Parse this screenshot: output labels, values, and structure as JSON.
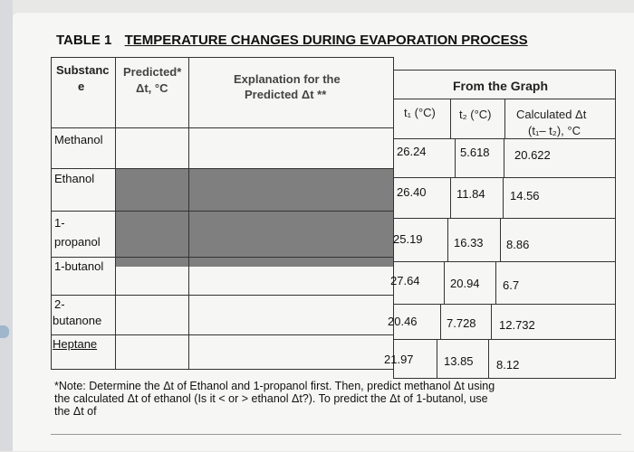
{
  "table": {
    "label": "TABLE 1",
    "title": "TEMPERATURE CHANGES DURING EVAPORATION PROCESS",
    "headers": {
      "substance_line1": "Substanc",
      "substance_line2": "e",
      "predicted_line1": "Predicted*",
      "predicted_line2": "Δt, °C",
      "explanation_line1": "Explanation for the",
      "explanation_line2": "Predicted Δt **",
      "from_graph": "From the Graph",
      "t1": "t₁ (°C)",
      "t2": "t₂ (°C)",
      "calc_line1": "Calculated Δt",
      "calc_line2": "(t₁– t₂), °C"
    },
    "rows": [
      {
        "substance": "Methanol",
        "t1": "26.24",
        "t2": "5.618",
        "calc": "20.622"
      },
      {
        "substance": "Ethanol",
        "t1": "26.40",
        "t2": "11.84",
        "calc": "14.56"
      },
      {
        "substance_line1": "1-",
        "substance_line2": "propanol",
        "t1": "25.19",
        "t2": "16.33",
        "calc": "8.86"
      },
      {
        "substance": "1-butanol",
        "t1": "27.64",
        "t2": "20.94",
        "calc": "6.7"
      },
      {
        "substance_line1": "2-",
        "substance_line2": "butanone",
        "t1": "20.46",
        "t2": "7.728",
        "calc": "12.732"
      },
      {
        "substance": "Heptane",
        "t1": "21.97",
        "t2": "13.85",
        "calc": "8.12"
      }
    ]
  },
  "note": {
    "line1": "*Note: Determine the Δt of Ethanol and 1-propanol first. Then, predict methanol Δt using",
    "line2": "the calculated Δt of ethanol (Is it < or > ethanol Δt?). To predict the Δt of 1-butanol, use",
    "line3": "the Δt of"
  }
}
